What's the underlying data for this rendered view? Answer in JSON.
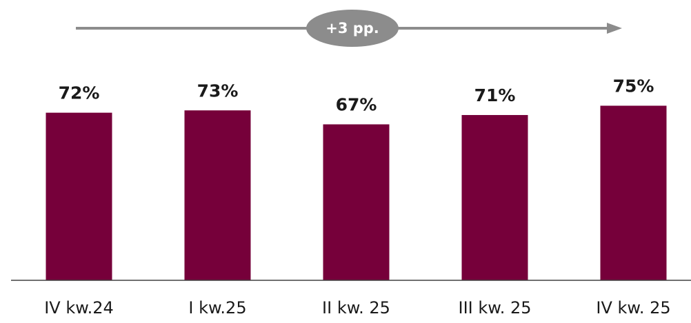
{
  "chart_data": {
    "type": "bar",
    "categories": [
      "IV kw.24",
      "I kw.25",
      "II kw. 25",
      "III kw. 25",
      "IV kw. 25"
    ],
    "values": [
      72,
      73,
      67,
      71,
      75
    ],
    "value_labels": [
      "72%",
      "73%",
      "67%",
      "71%",
      "75%"
    ],
    "unit": "%",
    "bar_color": "#76003a",
    "axis_color": "#404040",
    "grid": false,
    "legend": "none",
    "annotation": {
      "text": "+3 pp.",
      "type": "trend-arrow",
      "color": "#8c8c8c"
    }
  }
}
